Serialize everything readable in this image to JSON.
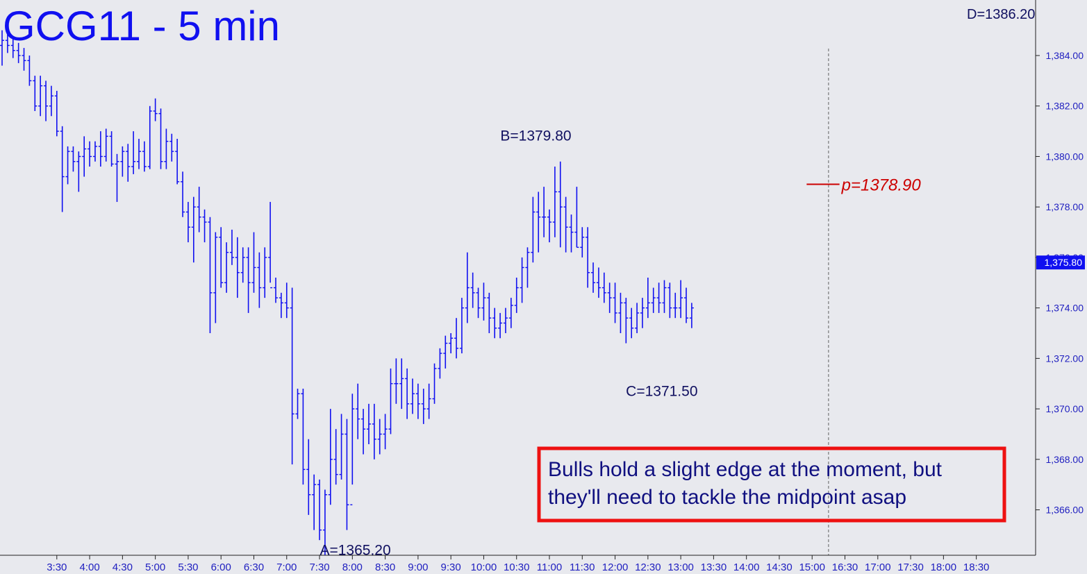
{
  "chart_data": {
    "type": "ohlc",
    "title": "GCG11 - 5 min",
    "top_right_label": "D=1386.20",
    "ylim": [
      1364.2,
      1386.2
    ],
    "y_ticks": [
      "1,384.00",
      "1,382.00",
      "1,380.00",
      "1,378.00",
      "1,376.00",
      "1,374.00",
      "1,372.00",
      "1,370.00",
      "1,368.00",
      "1,366.00"
    ],
    "y_tick_values": [
      1384,
      1382,
      1380,
      1378,
      1376,
      1374,
      1372,
      1370,
      1368,
      1366
    ],
    "current_price_label": "1,375.80",
    "current_price": 1375.8,
    "x_ticks": [
      "3:30",
      "4:00",
      "4:30",
      "5:00",
      "5:30",
      "6:00",
      "6:30",
      "7:00",
      "7:30",
      "8:00",
      "8:30",
      "9:00",
      "9:30",
      "10:00",
      "10:30",
      "11:00",
      "11:30",
      "12:00",
      "12:30",
      "13:00",
      "13:30",
      "14:00",
      "14:30",
      "15:00",
      "16:30",
      "17:00",
      "17:30",
      "18:00",
      "18:30"
    ],
    "x_tick_bars": [
      10,
      16,
      22,
      28,
      34,
      40,
      46,
      52,
      58,
      64,
      70,
      76,
      82,
      88,
      94,
      100,
      106,
      112,
      118,
      124,
      130,
      136,
      142,
      148,
      154,
      160,
      166,
      172,
      178
    ],
    "session_break_bar": 151,
    "annotations": [
      {
        "text": "A=1365.20",
        "bar": 62,
        "price": 1365.2,
        "position": "below"
      },
      {
        "text": "B=1379.80",
        "bar": 96,
        "price": 1379.8,
        "position": "above"
      },
      {
        "text": "C=1371.50",
        "bar": 118,
        "price": 1371.5,
        "position": "below"
      }
    ],
    "pivot": {
      "text": "p=1378.90",
      "price": 1378.9,
      "bar_start": 147,
      "bar_end": 153
    },
    "note": {
      "lines": [
        "Bulls hold a slight edge at the moment, but",
        "they'll need to tackle the midpoint asap"
      ]
    },
    "colors": {
      "bars": "#1010f0",
      "pivot": "#cc0000",
      "note_border": "#ee1111",
      "note_text": "#101080",
      "current_label_bg": "#1010f0"
    },
    "bars": [
      [
        1384.4,
        1385.0,
        1383.6,
        1384.6
      ],
      [
        1384.6,
        1385.0,
        1384.1,
        1384.4
      ],
      [
        1384.4,
        1384.7,
        1383.9,
        1384.2
      ],
      [
        1384.2,
        1384.5,
        1383.7,
        1384.0
      ],
      [
        1384.0,
        1384.3,
        1383.4,
        1383.8
      ],
      [
        1383.8,
        1384.0,
        1382.8,
        1383.0
      ],
      [
        1383.0,
        1383.2,
        1381.8,
        1382.0
      ],
      [
        1382.0,
        1383.2,
        1381.6,
        1382.8
      ],
      [
        1382.8,
        1383.0,
        1381.4,
        1382.0
      ],
      [
        1382.0,
        1382.8,
        1381.6,
        1382.4
      ],
      [
        1382.4,
        1382.6,
        1380.8,
        1381.0
      ],
      [
        1381.0,
        1381.2,
        1377.8,
        1379.2
      ],
      [
        1379.2,
        1380.4,
        1378.9,
        1380.2
      ],
      [
        1380.2,
        1380.4,
        1379.4,
        1379.8
      ],
      [
        1379.8,
        1380.2,
        1378.6,
        1380.0
      ],
      [
        1380.0,
        1380.8,
        1379.2,
        1380.3
      ],
      [
        1380.3,
        1380.6,
        1379.6,
        1380.0
      ],
      [
        1380.0,
        1380.6,
        1379.8,
        1380.4
      ],
      [
        1380.4,
        1381.0,
        1379.6,
        1380.0
      ],
      [
        1380.0,
        1381.1,
        1379.8,
        1380.8
      ],
      [
        1380.8,
        1381.0,
        1379.6,
        1379.7
      ],
      [
        1379.7,
        1380.1,
        1378.2,
        1379.8
      ],
      [
        1379.8,
        1380.4,
        1379.2,
        1380.2
      ],
      [
        1380.2,
        1380.5,
        1379.0,
        1379.6
      ],
      [
        1379.6,
        1381.0,
        1379.3,
        1379.8
      ],
      [
        1379.8,
        1380.7,
        1379.5,
        1380.2
      ],
      [
        1380.2,
        1380.6,
        1379.4,
        1379.6
      ],
      [
        1379.6,
        1382.0,
        1379.5,
        1381.8
      ],
      [
        1381.8,
        1382.3,
        1381.4,
        1381.7
      ],
      [
        1381.7,
        1381.9,
        1379.5,
        1379.8
      ],
      [
        1379.8,
        1381.1,
        1379.5,
        1380.6
      ],
      [
        1380.6,
        1380.9,
        1379.8,
        1380.2
      ],
      [
        1380.2,
        1380.7,
        1378.9,
        1379.0
      ],
      [
        1379.0,
        1379.4,
        1377.6,
        1377.8
      ],
      [
        1377.8,
        1378.2,
        1376.6,
        1377.2
      ],
      [
        1377.2,
        1378.4,
        1375.8,
        1378.0
      ],
      [
        1378.0,
        1378.8,
        1377.0,
        1377.6
      ],
      [
        1377.6,
        1377.9,
        1376.6,
        1377.4
      ],
      [
        1377.4,
        1377.6,
        1373.0,
        1374.6
      ],
      [
        1374.6,
        1377.0,
        1373.4,
        1376.8
      ],
      [
        1376.8,
        1377.2,
        1374.8,
        1375.0
      ],
      [
        1375.0,
        1376.6,
        1374.6,
        1376.2
      ],
      [
        1376.2,
        1377.1,
        1375.7,
        1376.0
      ],
      [
        1376.0,
        1376.8,
        1374.4,
        1375.4
      ],
      [
        1375.4,
        1376.4,
        1375.0,
        1376.0
      ],
      [
        1376.0,
        1376.4,
        1373.8,
        1375.0
      ],
      [
        1375.0,
        1377.0,
        1374.6,
        1375.6
      ],
      [
        1375.6,
        1376.2,
        1374.0,
        1374.8
      ],
      [
        1374.8,
        1376.4,
        1374.4,
        1376.0
      ],
      [
        1376.0,
        1378.2,
        1375.0,
        1374.8
      ],
      [
        1374.8,
        1375.2,
        1374.2,
        1374.4
      ],
      [
        1374.4,
        1374.6,
        1373.6,
        1374.2
      ],
      [
        1374.2,
        1375.0,
        1373.6,
        1374.0
      ],
      [
        1374.0,
        1374.8,
        1367.8,
        1369.8
      ],
      [
        1369.8,
        1370.8,
        1369.6,
        1370.6
      ],
      [
        1370.6,
        1370.8,
        1367.0,
        1367.6
      ],
      [
        1367.6,
        1368.8,
        1365.8,
        1366.6
      ],
      [
        1366.6,
        1367.4,
        1365.2,
        1367.0
      ],
      [
        1367.0,
        1367.2,
        1364.8,
        1365.2
      ],
      [
        1365.2,
        1366.8,
        1364.2,
        1366.6
      ],
      [
        1366.6,
        1370.0,
        1366.2,
        1368.0
      ],
      [
        1368.0,
        1369.2,
        1367.0,
        1367.4
      ],
      [
        1367.4,
        1369.8,
        1367.2,
        1369.0
      ],
      [
        1369.0,
        1369.6,
        1365.2,
        1366.2
      ],
      [
        1366.2,
        1370.6,
        1367.0,
        1370.0
      ],
      [
        1370.0,
        1371.0,
        1368.8,
        1369.6
      ],
      [
        1369.6,
        1370.0,
        1368.2,
        1369.2
      ],
      [
        1369.2,
        1370.2,
        1368.6,
        1369.4
      ],
      [
        1369.4,
        1370.2,
        1368.0,
        1368.8
      ],
      [
        1368.8,
        1369.6,
        1368.2,
        1369.0
      ],
      [
        1369.0,
        1369.8,
        1368.4,
        1369.2
      ],
      [
        1369.2,
        1371.6,
        1369.0,
        1371.0
      ],
      [
        1371.0,
        1372.0,
        1370.2,
        1371.0
      ],
      [
        1371.0,
        1372.0,
        1370.0,
        1371.2
      ],
      [
        1371.2,
        1371.6,
        1369.6,
        1370.2
      ],
      [
        1370.2,
        1371.2,
        1369.8,
        1370.6
      ],
      [
        1370.6,
        1371.0,
        1369.6,
        1370.2
      ],
      [
        1370.2,
        1370.8,
        1369.4,
        1370.0
      ],
      [
        1370.0,
        1371.0,
        1369.6,
        1370.4
      ],
      [
        1370.4,
        1371.8,
        1370.2,
        1371.6
      ],
      [
        1371.6,
        1372.4,
        1371.2,
        1372.2
      ],
      [
        1372.2,
        1372.9,
        1371.6,
        1372.6
      ],
      [
        1372.6,
        1373.0,
        1372.2,
        1372.8
      ],
      [
        1372.8,
        1373.6,
        1372.0,
        1372.4
      ],
      [
        1372.4,
        1374.4,
        1372.2,
        1374.0
      ],
      [
        1374.0,
        1376.2,
        1373.4,
        1374.8
      ],
      [
        1374.8,
        1375.4,
        1374.0,
        1374.6
      ],
      [
        1374.6,
        1374.8,
        1373.6,
        1374.0
      ],
      [
        1374.0,
        1375.0,
        1373.5,
        1374.4
      ],
      [
        1374.4,
        1374.6,
        1373.0,
        1373.6
      ],
      [
        1373.6,
        1374.0,
        1372.8,
        1373.2
      ],
      [
        1373.2,
        1373.8,
        1372.8,
        1373.4
      ],
      [
        1373.4,
        1374.0,
        1373.0,
        1373.6
      ],
      [
        1373.6,
        1374.4,
        1373.2,
        1374.1
      ],
      [
        1374.1,
        1375.2,
        1373.8,
        1374.8
      ],
      [
        1374.8,
        1376.0,
        1374.2,
        1375.6
      ],
      [
        1375.6,
        1376.4,
        1374.8,
        1376.2
      ],
      [
        1376.2,
        1378.4,
        1375.8,
        1377.8
      ],
      [
        1377.8,
        1378.6,
        1376.2,
        1377.6
      ],
      [
        1377.6,
        1378.8,
        1376.8,
        1377.6
      ],
      [
        1377.6,
        1377.9,
        1376.6,
        1377.4
      ],
      [
        1377.4,
        1379.6,
        1376.8,
        1378.6
      ],
      [
        1378.6,
        1379.8,
        1376.4,
        1378.0
      ],
      [
        1378.0,
        1378.4,
        1376.2,
        1377.2
      ],
      [
        1377.2,
        1377.7,
        1376.2,
        1377.0
      ],
      [
        1377.0,
        1378.8,
        1376.4,
        1376.4
      ],
      [
        1376.4,
        1377.2,
        1376.0,
        1376.8
      ],
      [
        1376.8,
        1377.2,
        1374.8,
        1375.4
      ],
      [
        1375.4,
        1375.8,
        1374.6,
        1375.0
      ],
      [
        1375.0,
        1375.6,
        1374.4,
        1374.8
      ],
      [
        1374.8,
        1375.4,
        1374.2,
        1374.6
      ],
      [
        1374.6,
        1375.0,
        1373.8,
        1374.4
      ],
      [
        1374.4,
        1375.0,
        1373.4,
        1373.8
      ],
      [
        1373.8,
        1374.6,
        1373.0,
        1374.2
      ],
      [
        1374.2,
        1374.4,
        1372.6,
        1373.6
      ],
      [
        1373.6,
        1374.0,
        1372.8,
        1373.2
      ],
      [
        1373.2,
        1374.2,
        1373.0,
        1373.8
      ],
      [
        1373.8,
        1374.4,
        1373.2,
        1374.0
      ],
      [
        1374.0,
        1375.2,
        1373.6,
        1374.2
      ],
      [
        1374.2,
        1374.8,
        1373.8,
        1374.4
      ],
      [
        1374.4,
        1375.0,
        1373.8,
        1374.2
      ],
      [
        1374.2,
        1375.1,
        1373.8,
        1374.8
      ],
      [
        1374.8,
        1375.0,
        1373.6,
        1374.0
      ],
      [
        1374.0,
        1374.6,
        1373.6,
        1374.0
      ],
      [
        1374.0,
        1375.1,
        1373.6,
        1374.4
      ],
      [
        1374.4,
        1374.8,
        1373.4,
        1373.6
      ],
      [
        1373.6,
        1374.2,
        1373.2,
        1374.0
      ]
    ]
  }
}
